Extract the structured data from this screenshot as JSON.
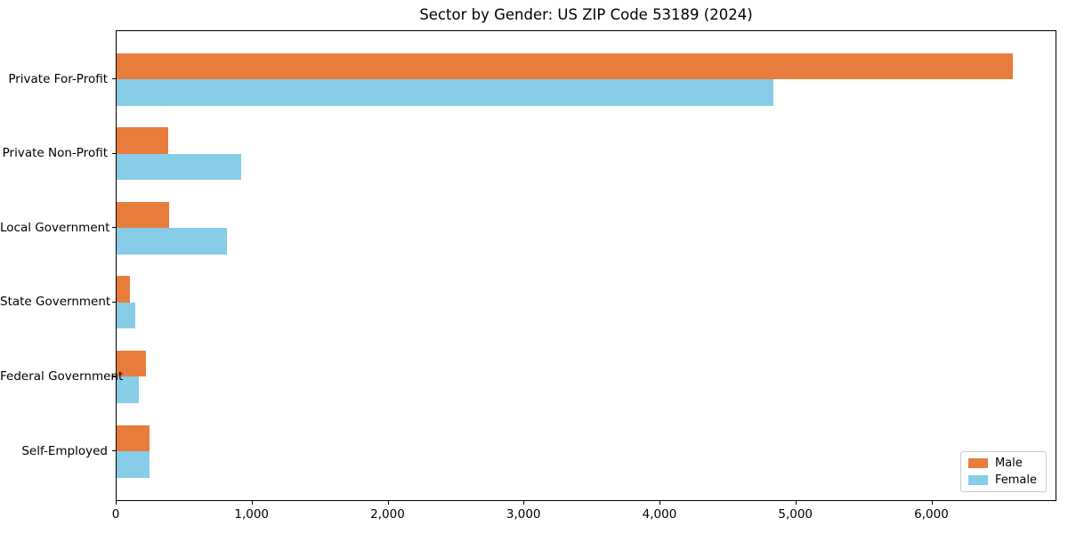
{
  "title": "Sector by Gender: US ZIP Code 53189 (2024)",
  "chart_data": {
    "type": "bar",
    "orientation": "horizontal",
    "title": "Sector by Gender: US ZIP Code 53189 (2024)",
    "categories": [
      "Private For-Profit",
      "Private Non-Profit",
      "Local Government",
      "State Government",
      "Federal Government",
      "Self-Employed"
    ],
    "series": [
      {
        "name": "Male",
        "color": "#E87C3C",
        "values": [
          6590,
          380,
          385,
          100,
          215,
          245
        ]
      },
      {
        "name": "Female",
        "color": "#87CDE8",
        "values": [
          4830,
          915,
          810,
          140,
          165,
          240
        ]
      }
    ],
    "xlabel": "",
    "ylabel": "",
    "xlim": [
      0,
      6920
    ],
    "x_ticks": [
      0,
      1000,
      2000,
      3000,
      4000,
      5000,
      6000
    ],
    "x_tick_labels": [
      "0",
      "1,000",
      "2,000",
      "3,000",
      "4,000",
      "5,000",
      "6,000"
    ],
    "grid": false,
    "legend": {
      "position": "lower right",
      "entries": [
        "Male",
        "Female"
      ]
    }
  },
  "colors": {
    "male": "#E87C3C",
    "female": "#87CDE8",
    "axis": "#000000",
    "legend_border": "#cccccc",
    "background": "#ffffff"
  }
}
